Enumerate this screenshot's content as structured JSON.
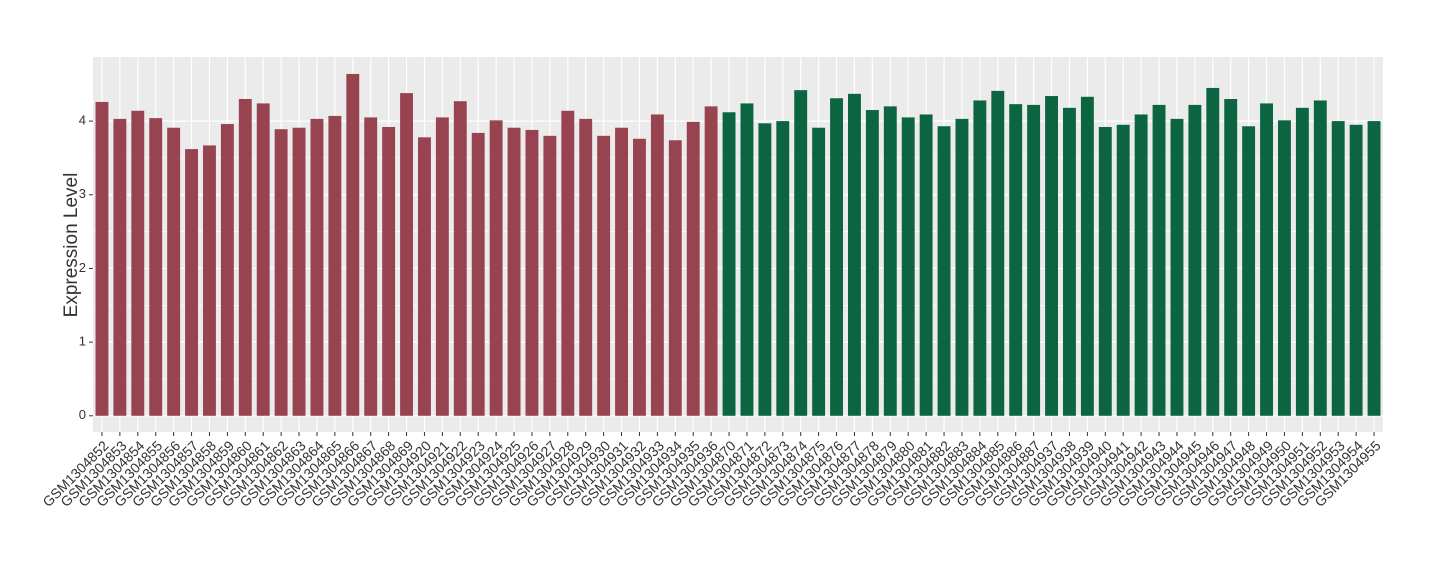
{
  "chart_data": {
    "type": "bar",
    "y_label": "Expression Level",
    "ylim": [
      -0.22,
      4.87
    ],
    "yticks": [
      0,
      1,
      2,
      3,
      4
    ],
    "grid": true,
    "series": [
      {
        "color": "#984450",
        "categories": [
          "GSM1304852",
          "GSM1304853",
          "GSM1304854",
          "GSM1304855",
          "GSM1304856",
          "GSM1304857",
          "GSM1304858",
          "GSM1304859",
          "GSM1304860",
          "GSM1304861",
          "GSM1304862",
          "GSM1304863",
          "GSM1304864",
          "GSM1304865",
          "GSM1304866",
          "GSM1304867",
          "GSM1304868",
          "GSM1304869",
          "GSM1304920",
          "GSM1304921",
          "GSM1304922",
          "GSM1304923",
          "GSM1304924",
          "GSM1304925",
          "GSM1304926",
          "GSM1304927",
          "GSM1304928",
          "GSM1304929",
          "GSM1304930",
          "GSM1304931",
          "GSM1304932",
          "GSM1304933",
          "GSM1304934",
          "GSM1304935",
          "GSM1304936"
        ],
        "values": [
          4.26,
          4.03,
          4.14,
          4.04,
          3.91,
          3.62,
          3.67,
          3.96,
          4.3,
          4.24,
          3.89,
          3.91,
          4.03,
          4.07,
          4.64,
          4.05,
          3.92,
          4.38,
          3.78,
          4.05,
          4.27,
          3.84,
          4.01,
          3.91,
          3.88,
          3.8,
          4.14,
          4.03,
          3.8,
          3.91,
          3.76,
          4.09,
          3.74,
          3.99,
          4.2
        ]
      },
      {
        "color": "#0b6541",
        "categories": [
          "GSM1304870",
          "GSM1304871",
          "GSM1304872",
          "GSM1304873",
          "GSM1304874",
          "GSM1304875",
          "GSM1304876",
          "GSM1304877",
          "GSM1304878",
          "GSM1304879",
          "GSM1304880",
          "GSM1304881",
          "GSM1304882",
          "GSM1304883",
          "GSM1304884",
          "GSM1304885",
          "GSM1304886",
          "GSM1304887",
          "GSM1304937",
          "GSM1304938",
          "GSM1304939",
          "GSM1304940",
          "GSM1304941",
          "GSM1304942",
          "GSM1304943",
          "GSM1304944",
          "GSM1304945",
          "GSM1304946",
          "GSM1304947",
          "GSM1304948",
          "GSM1304949",
          "GSM1304950",
          "GSM1304951",
          "GSM1304952",
          "GSM1304953",
          "GSM1304954",
          "GSM1304955"
        ],
        "values": [
          4.12,
          4.24,
          3.97,
          4.0,
          4.42,
          3.91,
          4.31,
          4.37,
          4.15,
          4.2,
          4.05,
          4.09,
          3.93,
          4.03,
          4.28,
          4.41,
          4.23,
          4.22,
          4.34,
          4.18,
          4.33,
          3.92,
          3.95,
          4.09,
          4.22,
          4.03,
          4.22,
          4.45,
          4.3,
          3.93,
          4.24,
          4.01,
          4.18,
          4.28,
          4.0,
          3.95,
          4.0
        ]
      }
    ]
  }
}
